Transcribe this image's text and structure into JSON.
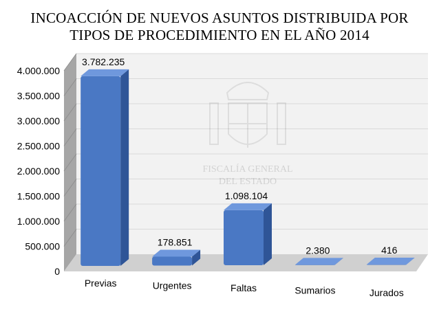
{
  "chart_data": {
    "type": "bar",
    "title_lines": [
      "INCOACCIÓN DE NUEVOS ASUNTOS DISTRIBUIDA POR",
      "TIPOS DE PROCEDIMIENTO EN EL AÑO 2014"
    ],
    "categories": [
      "Previas",
      "Urgentes",
      "Faltas",
      "Sumarios",
      "Jurados"
    ],
    "values": [
      3782235,
      178851,
      1098104,
      2380,
      416
    ],
    "data_labels": [
      "3.782.235",
      "178.851",
      "1.098.104",
      "2.380",
      "416"
    ],
    "y_tick_values": [
      0,
      500000,
      1000000,
      1500000,
      2000000,
      2500000,
      3000000,
      3500000,
      4000000
    ],
    "y_tick_labels": [
      "0",
      "500.000",
      "1.000.000",
      "1.500.000",
      "2.000.000",
      "2.500.000",
      "3.000.000",
      "3.500.000",
      "4.000.000"
    ],
    "ylim": [
      0,
      4000000
    ],
    "grid": true,
    "style": "3d-column",
    "watermark_text": [
      "FISCALÍA GENERAL",
      "DEL ESTADO"
    ],
    "colors": {
      "bar_front": "#4a78c4",
      "bar_side": "#2f5597",
      "bar_top": "#6f98dd",
      "back_wall": "#f2f2f2",
      "side_wall": "#a6a6a6",
      "floor": "#d0d0d0",
      "grid": "#d9d9d9"
    }
  }
}
